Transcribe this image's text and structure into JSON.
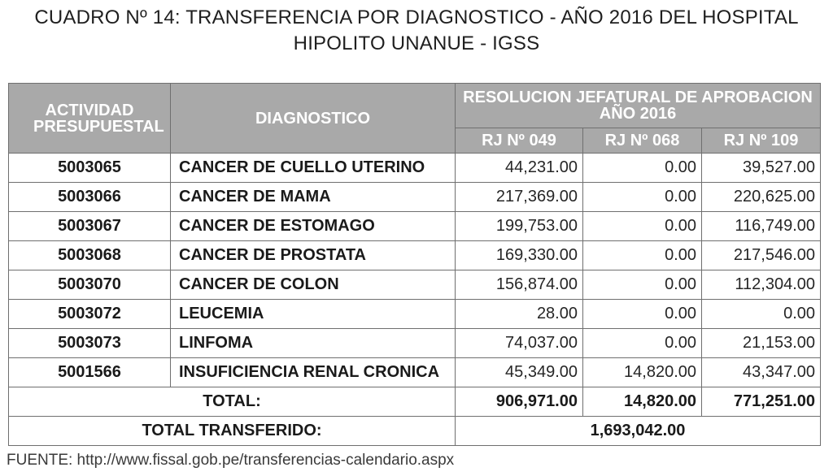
{
  "title": {
    "line1": "CUADRO Nº 14: TRANSFERENCIA POR DIAGNOSTICO - AÑO 2016 DEL HOSPITAL",
    "line2": "HIPOLITO UNANUE - IGSS"
  },
  "table": {
    "headers": {
      "actividad": "ACTIVIDAD PRESUPUESTAL",
      "diagnostico": "DIAGNOSTICO",
      "resolucion_line1": "RESOLUCION JEFATURAL DE APROBACION",
      "resolucion_line2": "AÑO 2016",
      "rj1": "RJ Nº 049",
      "rj2": "RJ Nº 068",
      "rj3": "RJ Nº 109"
    },
    "rows": [
      {
        "actividad": "5003065",
        "diagnostico": "CANCER DE CUELLO UTERINO",
        "rj049": "44,231.00",
        "rj068": "0.00",
        "rj109": "39,527.00"
      },
      {
        "actividad": "5003066",
        "diagnostico": "CANCER DE MAMA",
        "rj049": "217,369.00",
        "rj068": "0.00",
        "rj109": "220,625.00"
      },
      {
        "actividad": "5003067",
        "diagnostico": "CANCER DE ESTOMAGO",
        "rj049": "199,753.00",
        "rj068": "0.00",
        "rj109": "116,749.00"
      },
      {
        "actividad": "5003068",
        "diagnostico": "CANCER DE PROSTATA",
        "rj049": "169,330.00",
        "rj068": "0.00",
        "rj109": "217,546.00"
      },
      {
        "actividad": "5003070",
        "diagnostico": "CANCER DE COLON",
        "rj049": "156,874.00",
        "rj068": "0.00",
        "rj109": "112,304.00"
      },
      {
        "actividad": "5003072",
        "diagnostico": "LEUCEMIA",
        "rj049": "28.00",
        "rj068": "0.00",
        "rj109": "0.00"
      },
      {
        "actividad": "5003073",
        "diagnostico": "LINFOMA",
        "rj049": "74,037.00",
        "rj068": "0.00",
        "rj109": "21,153.00"
      },
      {
        "actividad": "5001566",
        "diagnostico": "INSUFICIENCIA RENAL CRONICA",
        "rj049": "45,349.00",
        "rj068": "14,820.00",
        "rj109": "43,347.00"
      }
    ],
    "total": {
      "label": "TOTAL:",
      "rj049": "906,971.00",
      "rj068": "14,820.00",
      "rj109": "771,251.00"
    },
    "grand_total": {
      "label": "TOTAL TRANSFERIDO:",
      "value": "1,693,042.00"
    }
  },
  "source": "FUENTE: http://www.fissal.gob.pe/transferencias-calendario.aspx"
}
